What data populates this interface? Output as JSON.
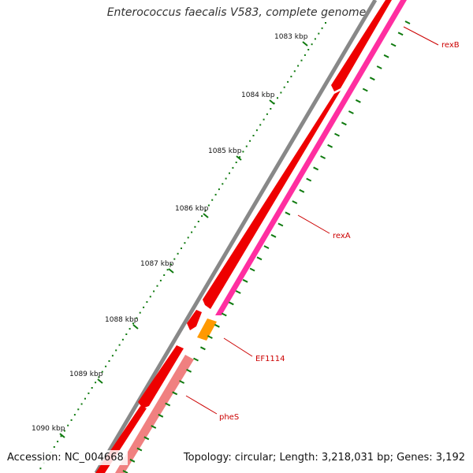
{
  "title": "Enterococcus faecalis V583, complete genome",
  "footer": {
    "accession": "Accession: NC_004668",
    "summary": "Topology: circular; Length: 3,218,031 bp; Genes: 3,192"
  },
  "ticks": [
    "1083 kbp",
    "1084 kbp",
    "1085 kbp",
    "1086 kbp",
    "1087 kbp",
    "1088 kbp",
    "1089 kbp",
    "1090 kbp"
  ],
  "genes": [
    {
      "name": "rexB",
      "color": "#cc0000"
    },
    {
      "name": "rexA",
      "color": "#cc0000"
    },
    {
      "name": "EF1114",
      "color": "#cc0000"
    },
    {
      "name": "pheS",
      "color": "#cc0000"
    }
  ],
  "colors": {
    "backbone": "#888888",
    "cds": "#ee0000",
    "cog_magenta": "#ff2ea0",
    "cog_orange": "#ff9900",
    "cog_pink": "#f08080",
    "tick": "#0f7a0f"
  }
}
